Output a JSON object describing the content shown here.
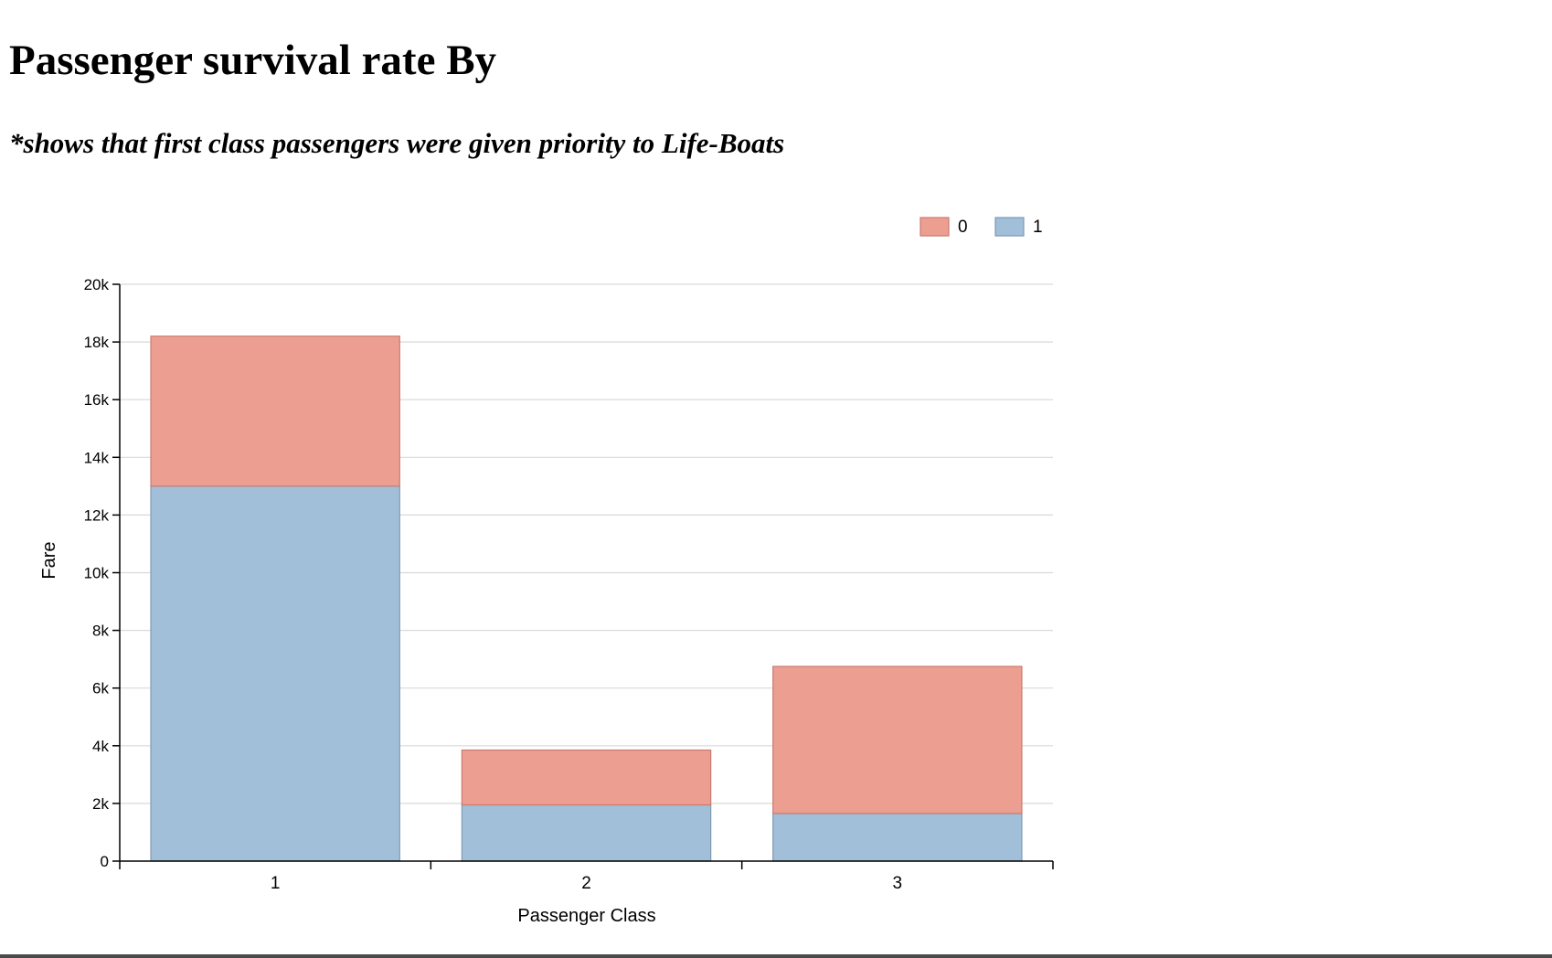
{
  "page": {
    "title": "Passenger survival rate By",
    "subtitle": "*shows that first class passengers were given priority to Life-Boats"
  },
  "chart_data": {
    "type": "bar",
    "stacked": true,
    "categories": [
      "1",
      "2",
      "3"
    ],
    "series": [
      {
        "name": "1",
        "color": "#a1bfd9",
        "stroke": "#7f9ab3",
        "values": [
          13000,
          1950,
          1650
        ]
      },
      {
        "name": "0",
        "color": "#ec9e91",
        "stroke": "#c97b70",
        "values": [
          5200,
          1900,
          5100
        ]
      }
    ],
    "legend_order": [
      "0",
      "1"
    ],
    "legend_position": "top-right",
    "xlabel": "Passenger Class",
    "ylabel": "Fare",
    "ylim": [
      0,
      20000
    ],
    "yticks": [
      0,
      2000,
      4000,
      6000,
      8000,
      10000,
      12000,
      14000,
      16000,
      18000,
      20000
    ],
    "ytick_labels": [
      "0",
      "2k",
      "4k",
      "6k",
      "8k",
      "10k",
      "12k",
      "14k",
      "16k",
      "18k",
      "20k"
    ],
    "grid": true
  }
}
